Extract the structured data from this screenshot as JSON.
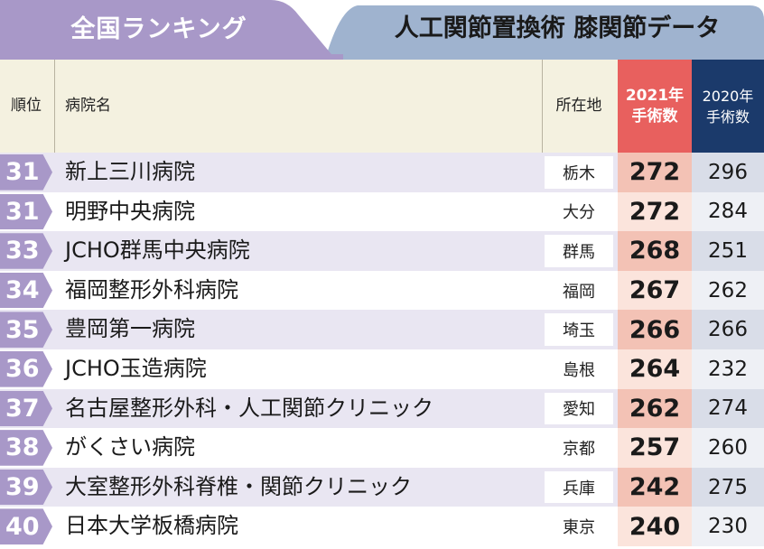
{
  "banner": {
    "left_tab": "全国ランキング",
    "right_tab": "人工関節置換術 膝関節データ"
  },
  "columns": {
    "rank": "順位",
    "name": "病院名",
    "location": "所在地",
    "y2021_line1": "2021年",
    "y2021_line2": "手術数",
    "y2020_line1": "2020年",
    "y2020_line2": "手術数"
  },
  "rows": [
    {
      "rank": "31",
      "name": "新上三川病院",
      "location": "栃木",
      "y2021": "272",
      "y2020": "296"
    },
    {
      "rank": "31",
      "name": "明野中央病院",
      "location": "大分",
      "y2021": "272",
      "y2020": "284"
    },
    {
      "rank": "33",
      "name": "JCHO群馬中央病院",
      "location": "群馬",
      "y2021": "268",
      "y2020": "251"
    },
    {
      "rank": "34",
      "name": "福岡整形外科病院",
      "location": "福岡",
      "y2021": "267",
      "y2020": "262"
    },
    {
      "rank": "35",
      "name": "豊岡第一病院",
      "location": "埼玉",
      "y2021": "266",
      "y2020": "266"
    },
    {
      "rank": "36",
      "name": "JCHO玉造病院",
      "location": "島根",
      "y2021": "264",
      "y2020": "232"
    },
    {
      "rank": "37",
      "name": "名古屋整形外科・人工関節クリニック",
      "location": "愛知",
      "y2021": "262",
      "y2020": "274"
    },
    {
      "rank": "38",
      "name": "がくさい病院",
      "location": "京都",
      "y2021": "257",
      "y2020": "260"
    },
    {
      "rank": "39",
      "name": "大室整形外科脊椎・関節クリニック",
      "location": "兵庫",
      "y2021": "242",
      "y2020": "275"
    },
    {
      "rank": "40",
      "name": "日本大学板橋病院",
      "location": "東京",
      "y2021": "240",
      "y2020": "230"
    }
  ],
  "colors": {
    "left_tab": "#a898c8",
    "right_tab": "#9fb3cf",
    "header_bg": "#f4f1e0",
    "col2021_header": "#e8605e",
    "col2020_header": "#1b3a6b"
  }
}
